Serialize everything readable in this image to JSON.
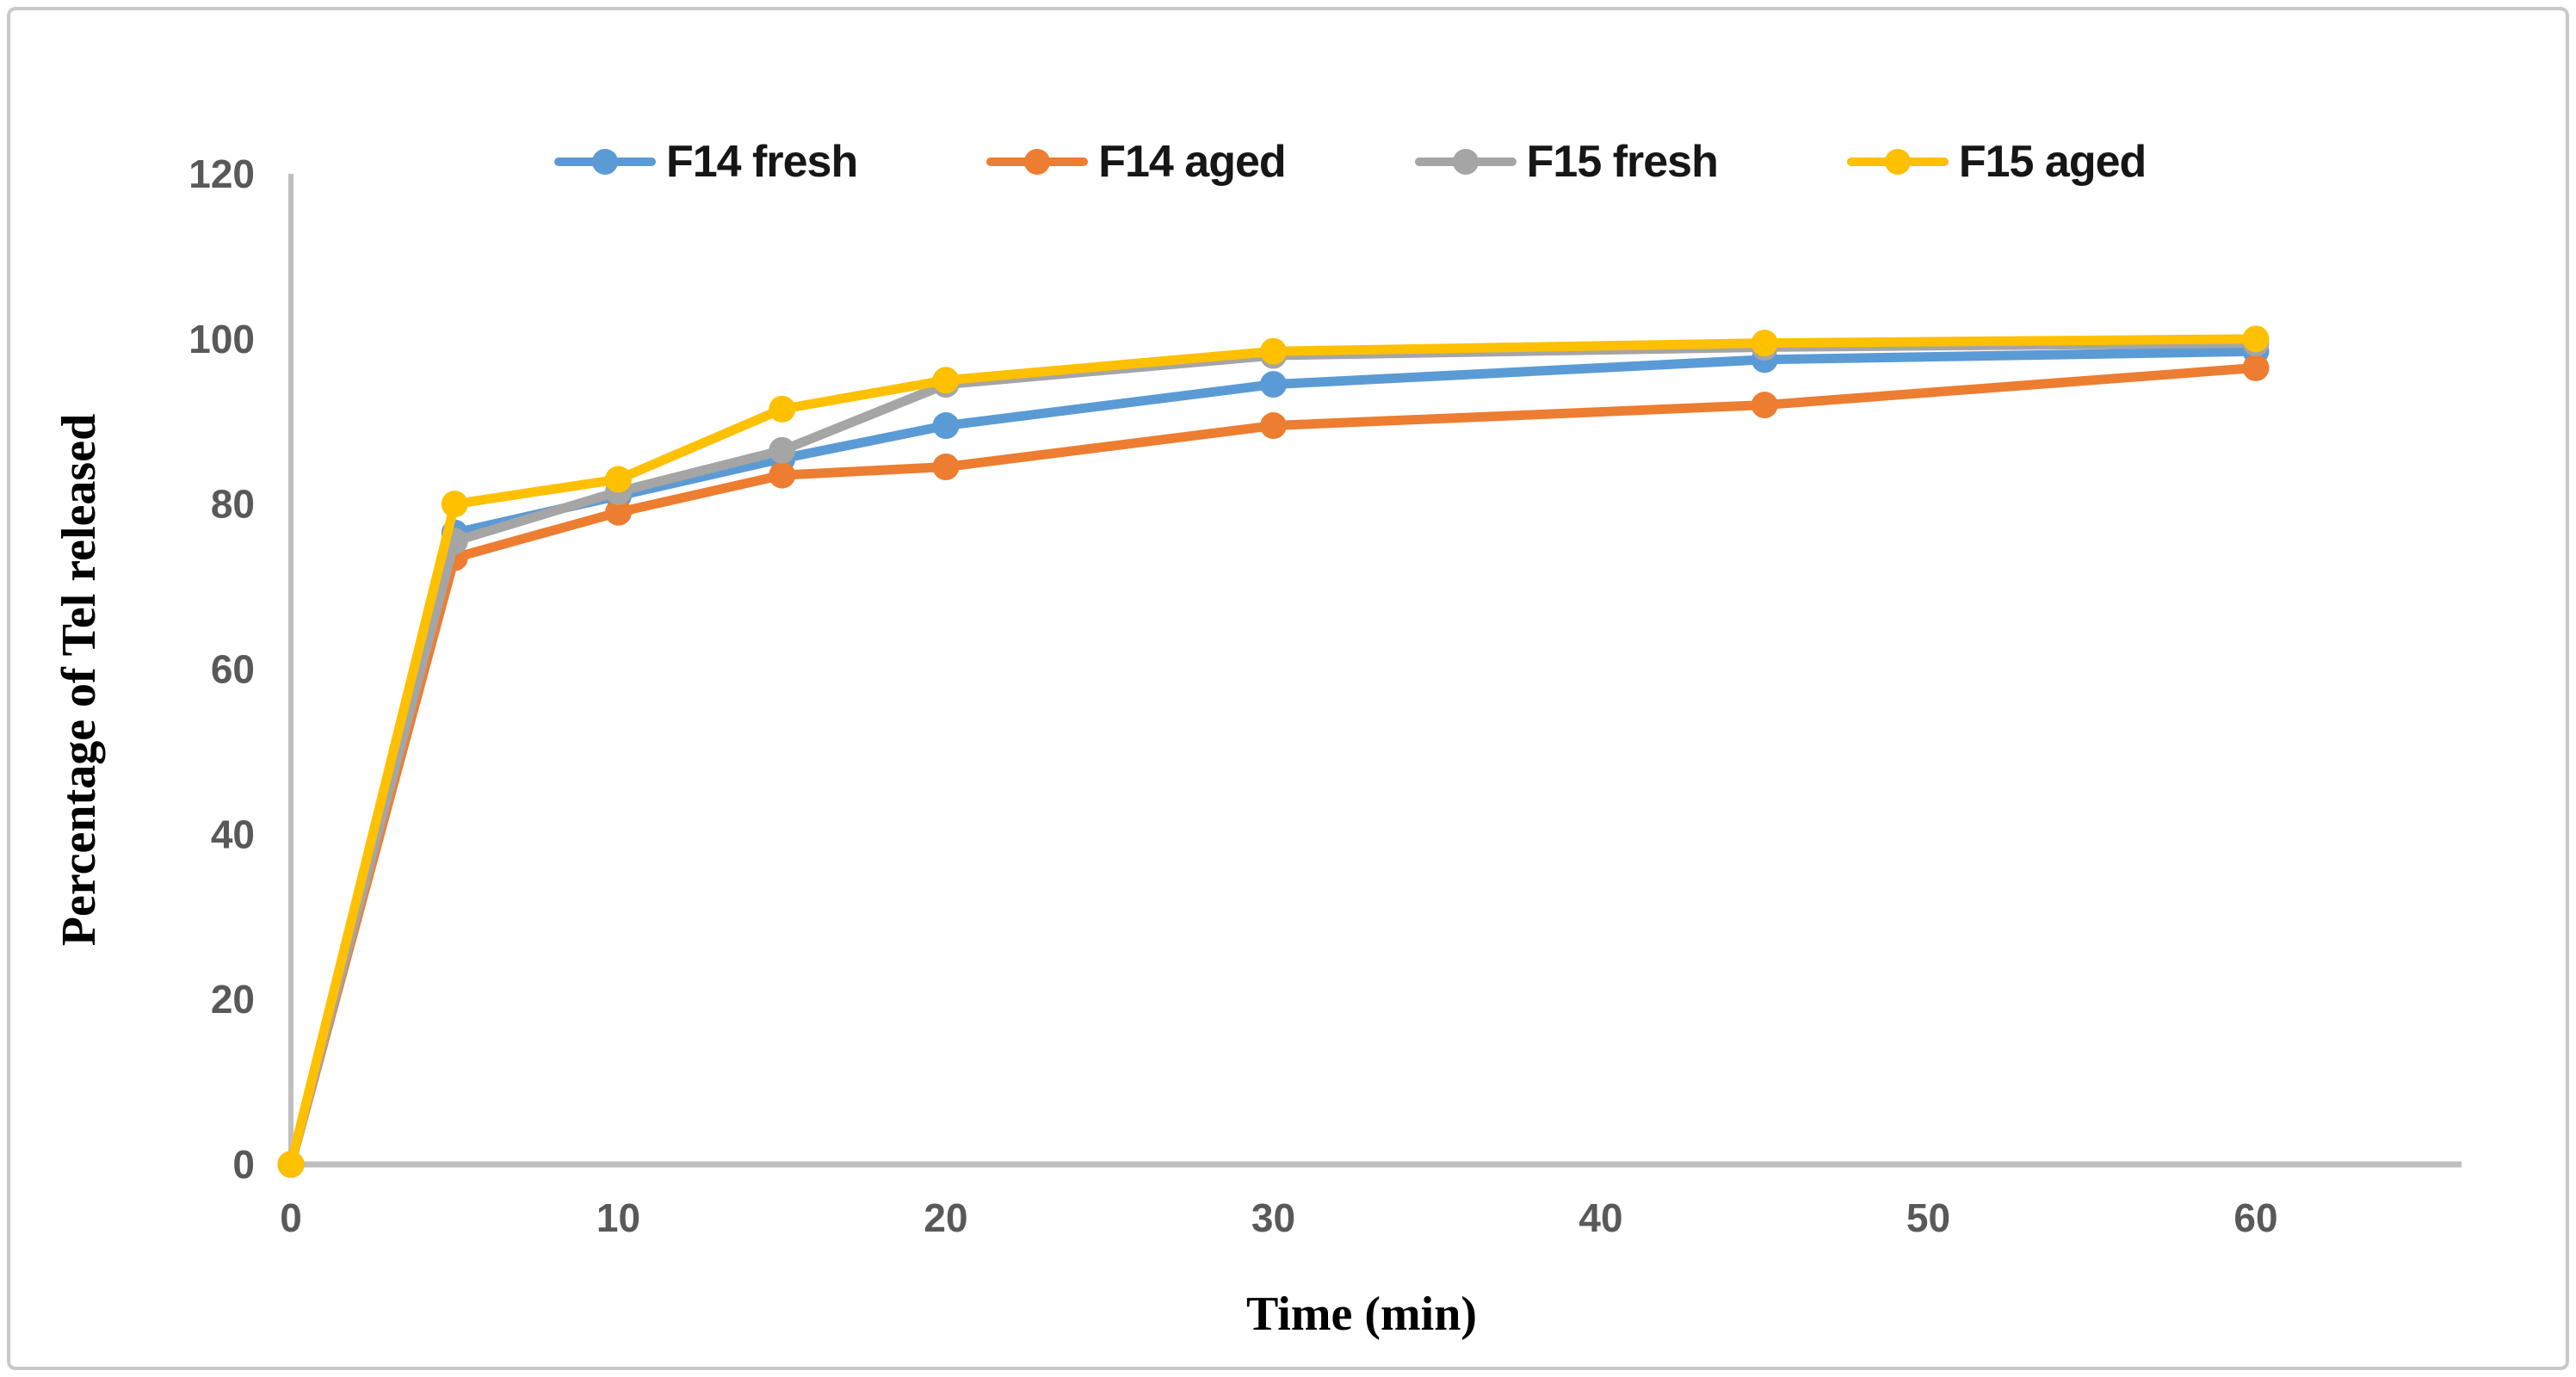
{
  "chart_data": {
    "type": "line",
    "title": "",
    "xlabel": "Time (min)",
    "ylabel": "Percentage of Tel released",
    "x": [
      0,
      5,
      10,
      15,
      20,
      30,
      45,
      60
    ],
    "series": [
      {
        "name": "F14 fresh",
        "color": "#5B9BD5",
        "values": [
          0,
          76.5,
          81,
          85.5,
          89.5,
          94.5,
          97.5,
          98.5
        ]
      },
      {
        "name": "F14 aged",
        "color": "#ED7D31",
        "values": [
          0,
          73.5,
          79,
          83.5,
          84.5,
          89.5,
          92,
          96.5
        ]
      },
      {
        "name": "F15 fresh",
        "color": "#A5A5A5",
        "values": [
          0,
          75.5,
          81.5,
          86.5,
          94.5,
          98,
          99,
          99.5
        ]
      },
      {
        "name": "F15 aged",
        "color": "#FFC000",
        "values": [
          0,
          80,
          83,
          91.5,
          95,
          98.5,
          99.5,
          100
        ]
      }
    ],
    "x_ticks": [
      0,
      10,
      20,
      30,
      40,
      50,
      60
    ],
    "y_ticks": [
      0,
      20,
      40,
      60,
      80,
      100,
      120
    ],
    "xlim": [
      0,
      60
    ],
    "ylim": [
      0,
      120
    ],
    "grid": false,
    "legend_position": "top",
    "marker": "circle"
  },
  "styles": {
    "axis_line_color": "#BFBFBF",
    "tick_label_color": "#595959",
    "frame_border_color": "#C9C9C9",
    "background_color": "#FFFFFF",
    "legend_text_color": "#161616"
  }
}
